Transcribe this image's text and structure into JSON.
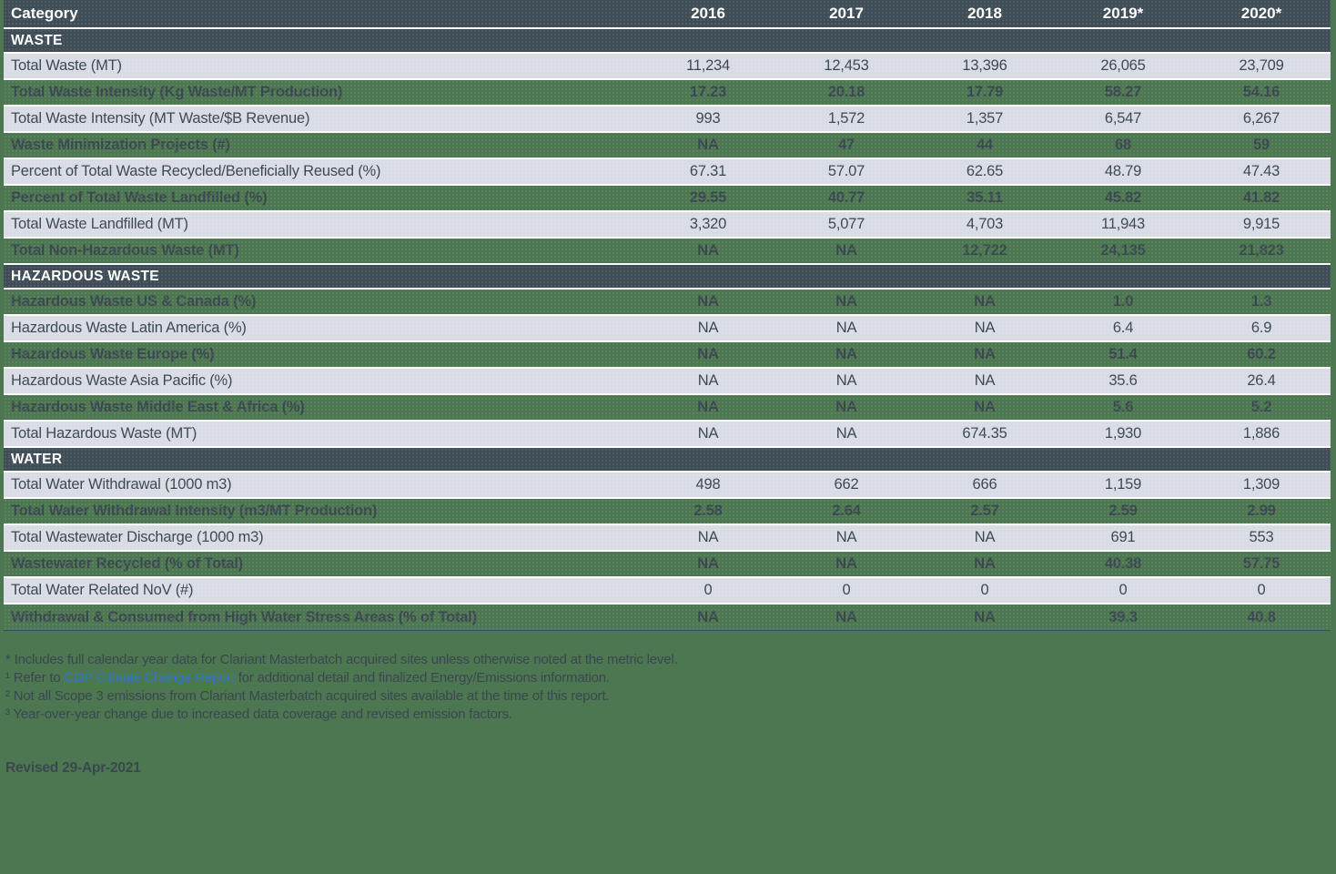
{
  "page": {
    "background_color": "#4c7751",
    "header_color": "#3f4d57",
    "light_row_color": "#d9dce3",
    "text_color": "#3b4750",
    "link_color": "#2e78c2"
  },
  "table": {
    "header": {
      "category_label": "Category",
      "years": [
        "2016",
        "2017",
        "2018",
        "2019*",
        "2020*"
      ]
    },
    "sections": [
      {
        "title": "WASTE",
        "rows": [
          {
            "label": "Total Waste (MT)",
            "values": [
              "11,234",
              "12,453",
              "13,396",
              "26,065",
              "23,709"
            ],
            "style": "light"
          },
          {
            "label": "Total Waste Intensity (Kg Waste/MT Production)",
            "values": [
              "17.23",
              "20.18",
              "17.79",
              "58.27",
              "54.16"
            ],
            "style": "green"
          },
          {
            "label": "Total Waste Intensity (MT Waste/$B Revenue)",
            "values": [
              "993",
              "1,572",
              "1,357",
              "6,547",
              "6,267"
            ],
            "style": "light"
          },
          {
            "label": "Waste Minimization Projects (#)",
            "values": [
              "NA",
              "47",
              "44",
              "68",
              "59"
            ],
            "style": "green"
          },
          {
            "label": "Percent of Total Waste Recycled/Beneficially Reused (%)",
            "values": [
              "67.31",
              "57.07",
              "62.65",
              "48.79",
              "47.43"
            ],
            "style": "light"
          },
          {
            "label": "Percent of Total Waste Landfilled (%)",
            "values": [
              "29.55",
              "40.77",
              "35.11",
              "45.82",
              "41.82"
            ],
            "style": "green"
          },
          {
            "label": "Total Waste Landfilled (MT)",
            "values": [
              "3,320",
              "5,077",
              "4,703",
              "11,943",
              "9,915"
            ],
            "style": "light"
          },
          {
            "label": "Total Non-Hazardous Waste (MT)",
            "values": [
              "NA",
              "NA",
              "12,722",
              "24,135",
              "21,823"
            ],
            "style": "green"
          }
        ]
      },
      {
        "title": "HAZARDOUS WASTE",
        "rows": [
          {
            "label": "Hazardous Waste US & Canada (%)",
            "values": [
              "NA",
              "NA",
              "NA",
              "1.0",
              "1.3"
            ],
            "style": "green"
          },
          {
            "label": "Hazardous Waste Latin America (%)",
            "values": [
              "NA",
              "NA",
              "NA",
              "6.4",
              "6.9"
            ],
            "style": "light"
          },
          {
            "label": "Hazardous Waste Europe (%)",
            "values": [
              "NA",
              "NA",
              "NA",
              "51.4",
              "60.2"
            ],
            "style": "green"
          },
          {
            "label": "Hazardous Waste Asia Pacific (%)",
            "values": [
              "NA",
              "NA",
              "NA",
              "35.6",
              "26.4"
            ],
            "style": "light"
          },
          {
            "label": "Hazardous Waste Middle East & Africa (%)",
            "values": [
              "NA",
              "NA",
              "NA",
              "5.6",
              "5.2"
            ],
            "style": "green"
          },
          {
            "label": "Total Hazardous Waste (MT)",
            "values": [
              "NA",
              "NA",
              "674.35",
              "1,930",
              "1,886"
            ],
            "style": "light"
          }
        ]
      },
      {
        "title": "WATER",
        "rows": [
          {
            "label": "Total Water Withdrawal (1000 m3)",
            "values": [
              "498",
              "662",
              "666",
              "1,159",
              "1,309"
            ],
            "style": "light"
          },
          {
            "label": "Total Water Withdrawal Intensity (m3/MT Production)",
            "values": [
              "2.58",
              "2.64",
              "2.57",
              "2.59",
              "2.99"
            ],
            "style": "green"
          },
          {
            "label": "Total Wastewater Discharge (1000 m3)",
            "values": [
              "NA",
              "NA",
              "NA",
              "691",
              "553"
            ],
            "style": "light"
          },
          {
            "label": "Wastewater Recycled (% of Total)",
            "values": [
              "NA",
              "NA",
              "NA",
              "40.38",
              "57.75"
            ],
            "style": "green"
          },
          {
            "label": "Total Water Related NoV (#)",
            "values": [
              "0",
              "0",
              "0",
              "0",
              "0"
            ],
            "style": "light"
          },
          {
            "label": "Withdrawal & Consumed from High Water Stress Areas (% of Total)",
            "values": [
              "NA",
              "NA",
              "NA",
              "39.3",
              "40.8"
            ],
            "style": "green"
          }
        ]
      }
    ]
  },
  "footnotes": {
    "line1": "* Includes full calendar year data for Clariant Masterbatch acquired sites unless otherwise noted at the metric level.",
    "line2_prefix": "¹ Refer to ",
    "line2_link": "CDP Climate Change Report",
    "line2_suffix": " for additional detail and finalized Energy/Emissions information.",
    "line3": "² Not all Scope 3 emissions from Clariant Masterbatch acquired sites available at the time of this report.",
    "line4": "³ Year-over-year change due to increased data coverage and revised emission factors.",
    "revised": "Revised 29-Apr-2021"
  }
}
